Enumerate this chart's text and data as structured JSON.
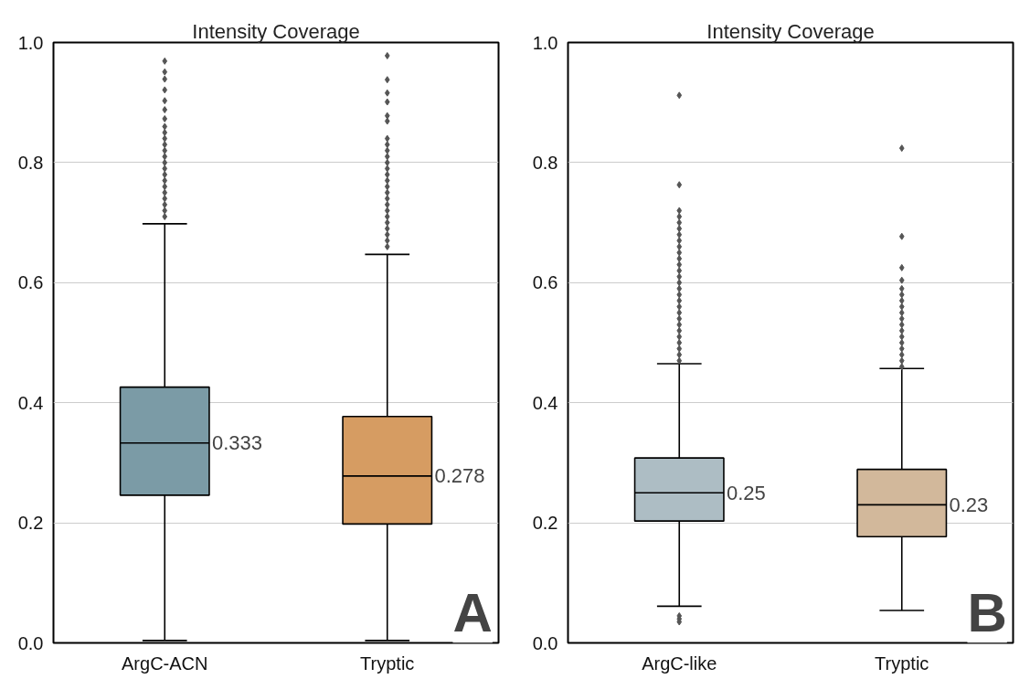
{
  "chart_data": [
    {
      "type": "box",
      "title": "Intensity Coverage",
      "categories": [
        "ArgC-ACN",
        "Tryptic"
      ],
      "colors": [
        "#7b9ba6",
        "#d69c62"
      ],
      "boxes": [
        {
          "low": 0.004,
          "q1": 0.246,
          "median": 0.333,
          "q3": 0.426,
          "high": 0.698,
          "outliers": [
            0.71,
            0.72,
            0.73,
            0.74,
            0.75,
            0.76,
            0.77,
            0.78,
            0.79,
            0.8,
            0.81,
            0.82,
            0.83,
            0.84,
            0.85,
            0.86,
            0.873,
            0.888,
            0.903,
            0.921,
            0.939,
            0.951,
            0.969
          ]
        },
        {
          "low": 0.004,
          "q1": 0.198,
          "median": 0.278,
          "q3": 0.377,
          "high": 0.647,
          "outliers": [
            0.66,
            0.67,
            0.68,
            0.69,
            0.7,
            0.71,
            0.72,
            0.73,
            0.74,
            0.75,
            0.76,
            0.77,
            0.78,
            0.79,
            0.8,
            0.81,
            0.82,
            0.83,
            0.84,
            0.869,
            0.878,
            0.901,
            0.916,
            0.938,
            0.978
          ]
        }
      ],
      "ylim": [
        0,
        1
      ],
      "yticks": [
        {
          "value": 0,
          "label": "0.0"
        },
        {
          "value": 0.2,
          "label": "0.2"
        },
        {
          "value": 0.4,
          "label": "0.4"
        },
        {
          "value": 0.6,
          "label": "0.6"
        },
        {
          "value": 0.8,
          "label": "0.8"
        },
        {
          "value": 1,
          "label": "1.0"
        }
      ],
      "grid": "y",
      "marker": "diamond",
      "annotations": [
        {
          "text": "0.333",
          "x": "ArgC-ACN",
          "y": 0.333
        },
        {
          "text": "0.278",
          "x": "Tryptic",
          "y": 0.278
        },
        "A"
      ]
    },
    {
      "type": "box",
      "title": "Intensity Coverage",
      "categories": [
        "ArgC-like",
        "Tryptic"
      ],
      "colors": [
        "#adbdc4",
        "#d2b89b"
      ],
      "boxes": [
        {
          "low": 0.061,
          "q1": 0.203,
          "median": 0.25,
          "q3": 0.308,
          "high": 0.465,
          "outliers": [
            0.035,
            0.04,
            0.045,
            0.47,
            0.48,
            0.49,
            0.5,
            0.51,
            0.52,
            0.53,
            0.54,
            0.55,
            0.56,
            0.57,
            0.58,
            0.59,
            0.6,
            0.61,
            0.62,
            0.63,
            0.64,
            0.65,
            0.66,
            0.67,
            0.68,
            0.69,
            0.7,
            0.71,
            0.72,
            0.763,
            0.912
          ]
        },
        {
          "low": 0.054,
          "q1": 0.177,
          "median": 0.23,
          "q3": 0.289,
          "high": 0.457,
          "outliers": [
            0.46,
            0.47,
            0.48,
            0.49,
            0.5,
            0.51,
            0.52,
            0.53,
            0.54,
            0.55,
            0.56,
            0.57,
            0.58,
            0.59,
            0.604,
            0.625,
            0.677,
            0.824
          ]
        }
      ],
      "ylim": [
        0,
        1
      ],
      "yticks": [
        {
          "value": 0,
          "label": "0.0"
        },
        {
          "value": 0.2,
          "label": "0.2"
        },
        {
          "value": 0.4,
          "label": "0.4"
        },
        {
          "value": 0.6,
          "label": "0.6"
        },
        {
          "value": 0.8,
          "label": "0.8"
        },
        {
          "value": 1,
          "label": "1.0"
        }
      ],
      "grid": "y",
      "marker": "diamond",
      "annotations": [
        {
          "text": "0.25",
          "x": "ArgC-like",
          "y": 0.25
        },
        {
          "text": "0.23",
          "x": "Tryptic",
          "y": 0.23
        },
        "B"
      ]
    }
  ]
}
